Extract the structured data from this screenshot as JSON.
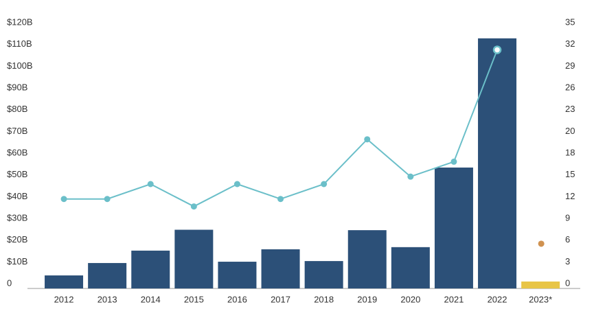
{
  "chart_data": {
    "type": "bar",
    "categories": [
      "2012",
      "2013",
      "2014",
      "2015",
      "2016",
      "2017",
      "2018",
      "2019",
      "2020",
      "2021",
      "2022",
      "2023*"
    ],
    "series": [
      {
        "type": "bar",
        "values": [
          6,
          11.7,
          17.4,
          27,
          12.3,
          18,
          12.6,
          26.8,
          19,
          55.6,
          115,
          3.2
        ],
        "colors": [
          "#2c5078",
          "#2c5078",
          "#2c5078",
          "#2c5078",
          "#2c5078",
          "#2c5078",
          "#2c5078",
          "#2c5078",
          "#2c5078",
          "#2c5078",
          "#2c5078",
          "#e8c547"
        ]
      },
      {
        "type": "line",
        "axis": "y2",
        "color": "#6bbfc9",
        "values": [
          12,
          12,
          14,
          11,
          14,
          12,
          14,
          20,
          15,
          17,
          32,
          null
        ]
      },
      {
        "type": "dot",
        "axis": "y2",
        "color": "#d09250",
        "values": [
          null,
          null,
          null,
          null,
          null,
          null,
          null,
          null,
          null,
          null,
          null,
          6
        ]
      }
    ],
    "ylim": [
      0,
      120
    ],
    "yticks": [
      0,
      {
        "value": 10,
        "label": "$10B"
      },
      {
        "value": 20,
        "label": "$20B"
      },
      {
        "value": 30,
        "label": "$30B"
      },
      {
        "value": 40,
        "label": "$40B"
      },
      {
        "value": 50,
        "label": "$50B"
      },
      {
        "value": 60,
        "label": "$60B"
      },
      {
        "value": 70,
        "label": "$70B"
      },
      {
        "value": 80,
        "label": "$80B"
      },
      {
        "value": 90,
        "label": "$90B"
      },
      {
        "value": 100,
        "label": "$100B"
      },
      {
        "value": 110,
        "label": "$110B"
      },
      {
        "value": 120,
        "label": "$120B"
      }
    ],
    "y2lim": [
      0,
      35
    ],
    "y2ticks": [
      0,
      {
        "value": 2.917,
        "label": "3"
      },
      {
        "value": 5.833,
        "label": "6"
      },
      {
        "value": 8.75,
        "label": "9"
      },
      {
        "value": 11.667,
        "label": "12"
      },
      {
        "value": 14.583,
        "label": "15"
      },
      {
        "value": 17.5,
        "label": "18"
      },
      {
        "value": 20.417,
        "label": "20"
      },
      {
        "value": 23.333,
        "label": "23"
      },
      {
        "value": 26.25,
        "label": "26"
      },
      {
        "value": 29.167,
        "label": "29"
      },
      {
        "value": 32.083,
        "label": "32"
      },
      35
    ],
    "grid": false
  }
}
